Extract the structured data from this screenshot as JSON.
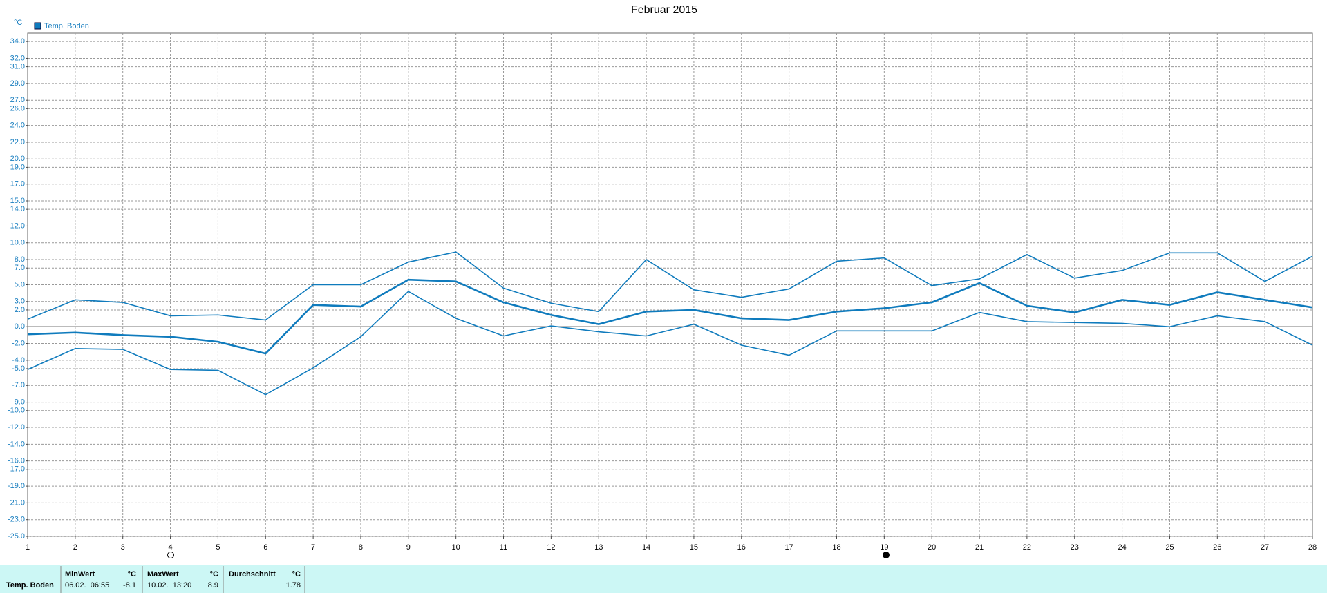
{
  "chart_data": {
    "type": "line",
    "title": "Februar 2015",
    "y_label": "°C",
    "legend": "Temp. Boden",
    "x": [
      1,
      2,
      3,
      4,
      5,
      6,
      7,
      8,
      9,
      10,
      11,
      12,
      13,
      14,
      15,
      16,
      17,
      18,
      19,
      20,
      21,
      22,
      23,
      24,
      25,
      26,
      27,
      28
    ],
    "series": [
      {
        "color": "#0f7bbd",
        "line_width": 1.6,
        "values": [
          0.9,
          3.2,
          2.9,
          1.3,
          1.4,
          0.8,
          5.0,
          5.0,
          7.7,
          8.9,
          4.6,
          2.8,
          1.8,
          8.0,
          4.4,
          3.5,
          4.5,
          7.8,
          8.2,
          4.9,
          5.7,
          8.6,
          5.8,
          6.7,
          8.8,
          8.8,
          5.4,
          8.4
        ]
      },
      {
        "color": "#0f7bbd",
        "line_width": 2.6,
        "values": [
          -0.9,
          -0.7,
          -1.0,
          -1.2,
          -1.8,
          -3.2,
          2.6,
          2.4,
          5.6,
          5.4,
          2.9,
          1.4,
          0.3,
          1.8,
          2.0,
          1.0,
          0.8,
          1.8,
          2.2,
          2.9,
          5.2,
          2.5,
          1.7,
          3.2,
          2.6,
          4.1,
          3.2,
          2.3
        ]
      },
      {
        "color": "#0f7bbd",
        "line_width": 1.6,
        "values": [
          -5.1,
          -2.6,
          -2.7,
          -5.1,
          -5.2,
          -8.1,
          -4.9,
          -1.2,
          4.2,
          1.0,
          -1.1,
          0.1,
          -0.6,
          -1.1,
          0.3,
          -2.2,
          -3.4,
          -0.5,
          -0.5,
          -0.5,
          1.7,
          0.6,
          0.5,
          0.4,
          0.0,
          1.3,
          0.6,
          -2.2
        ]
      }
    ],
    "xlim": [
      1,
      28
    ],
    "xticks": [
      1,
      2,
      3,
      4,
      5,
      6,
      7,
      8,
      9,
      10,
      11,
      12,
      13,
      14,
      15,
      16,
      17,
      18,
      19,
      20,
      21,
      22,
      23,
      24,
      25,
      26,
      27,
      28
    ],
    "ylim": [
      -25,
      35
    ],
    "yticks": [
      {
        "value": 34,
        "label": "34.0"
      },
      {
        "value": 32,
        "label": "32.0"
      },
      {
        "value": 31,
        "label": "31.0"
      },
      {
        "value": 29,
        "label": "29.0"
      },
      {
        "value": 27,
        "label": "27.0"
      },
      {
        "value": 26,
        "label": "26.0"
      },
      {
        "value": 24,
        "label": "24.0"
      },
      {
        "value": 22,
        "label": "22.0"
      },
      {
        "value": 20,
        "label": "20.0"
      },
      {
        "value": 19,
        "label": "19.0"
      },
      {
        "value": 17,
        "label": "17.0"
      },
      {
        "value": 15,
        "label": "15.0"
      },
      {
        "value": 14,
        "label": "14.0"
      },
      {
        "value": 12,
        "label": "12.0"
      },
      {
        "value": 10,
        "label": "10.0"
      },
      {
        "value": 8,
        "label": "8.0"
      },
      {
        "value": 7,
        "label": "7.0"
      },
      {
        "value": 5,
        "label": "5.0"
      },
      {
        "value": 3,
        "label": "3.0"
      },
      {
        "value": 2,
        "label": "2.0"
      },
      {
        "value": 0,
        "label": "0.0"
      },
      {
        "value": -2,
        "label": "-2.0"
      },
      {
        "value": -4,
        "label": "-4.0"
      },
      {
        "value": -5,
        "label": "-5.0"
      },
      {
        "value": -7,
        "label": "-7.0"
      },
      {
        "value": -9,
        "label": "-9.0"
      },
      {
        "value": -10,
        "label": "-10.0"
      },
      {
        "value": -12,
        "label": "-12.0"
      },
      {
        "value": -14,
        "label": "-14.0"
      },
      {
        "value": -16,
        "label": "-16.0"
      },
      {
        "value": -17,
        "label": "-17.0"
      },
      {
        "value": -19,
        "label": "-19.0"
      },
      {
        "value": -21,
        "label": "-21.0"
      },
      {
        "value": -23,
        "label": "-23.0"
      },
      {
        "value": -25,
        "label": "-25.0"
      }
    ],
    "grid": true
  },
  "summary": {
    "row_label": "Temp. Boden",
    "headers": [
      "MinWert",
      "°C",
      "MaxWert",
      "°C",
      "Durchschnitt",
      "°C"
    ],
    "min_time": "06.02.  06:55",
    "min_value": -8.1,
    "max_time": "10.02.  13:20",
    "max_value": 8.9,
    "mean_value": 1.78
  }
}
